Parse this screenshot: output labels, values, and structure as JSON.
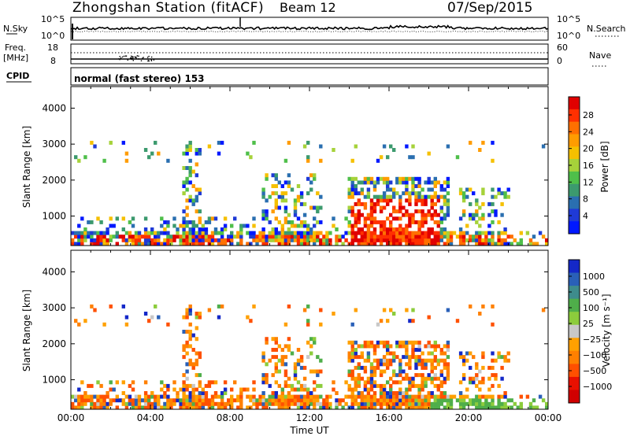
{
  "header": {
    "station": "Zhongshan Station (fitACF)",
    "beam": "Beam 12",
    "date": "07/Sep/2015"
  },
  "status_panels": {
    "nsky_label": "N.Sky",
    "nsky_ticks": [
      "10^5",
      "10^0"
    ],
    "nsearch_label": "N.Search",
    "nsearch_ticks": [
      "10^5",
      "10^0"
    ],
    "freq_label": "Freq.",
    "freq_unit": "[MHz]",
    "freq_ticks": [
      "18",
      "8"
    ],
    "nave_label": "Nave",
    "nave_ticks": [
      "60",
      "0"
    ],
    "cpid_label": "CPID",
    "cpid_value": "normal (fast stereo) 153"
  },
  "chart_data": [
    {
      "type": "heatmap",
      "name": "power",
      "xlabel": "",
      "ylabel": "Slant Range [km]",
      "x_range_hours": [
        0,
        24
      ],
      "ylim": [
        180,
        4600
      ],
      "yticks": [
        1000,
        2000,
        3000,
        4000
      ],
      "colorbar": {
        "label": "Power [dB]",
        "ticks": [
          "28",
          "24",
          "20",
          "16",
          "12",
          "8",
          "4"
        ],
        "colors": [
          "#e00000",
          "#ff3000",
          "#ff7000",
          "#ff9c00",
          "#f5c000",
          "#a6d23a",
          "#4fbf4a",
          "#3c9a6e",
          "#2a6fb0",
          "#1f3ad6",
          "#0018ff"
        ]
      }
    },
    {
      "type": "heatmap",
      "name": "velocity",
      "xlabel": "Time UT",
      "ylabel": "Slant Range [km]",
      "x_range_hours": [
        0,
        24
      ],
      "xticks": [
        "00:00",
        "04:00",
        "08:00",
        "12:00",
        "16:00",
        "20:00",
        "00:00"
      ],
      "ylim": [
        180,
        4600
      ],
      "yticks": [
        1000,
        2000,
        3000,
        4000
      ],
      "colorbar": {
        "label": "Velocity [m s⁻¹]",
        "ticks": [
          "1000",
          "500",
          "100",
          "25",
          "−25",
          "−100",
          "−500",
          "−1000"
        ],
        "colors": [
          "#1428c8",
          "#2a60b8",
          "#3e8c8c",
          "#4fae4a",
          "#8ccc3c",
          "#c8c8c8",
          "#ffa000",
          "#ff8000",
          "#ff5000",
          "#e81000",
          "#d00000"
        ]
      }
    }
  ]
}
